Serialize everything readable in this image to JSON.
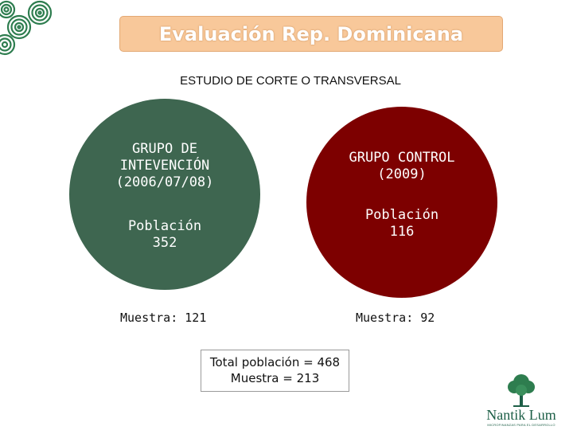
{
  "title": "Evaluación Rep. Dominicana",
  "subtitle": "ESTUDIO DE CORTE O TRANSVERSAL",
  "groups": {
    "intervention": {
      "name": "GRUPO DE\nINTEVENCIÓN\n(2006/07/08)",
      "population": "Población\n352",
      "sample": "Muestra: 121",
      "color": "#3e6650"
    },
    "control": {
      "name": "GRUPO CONTROL\n(2009)",
      "population": "Población\n116",
      "sample": "Muestra: 92",
      "color": "#7d0000"
    }
  },
  "totals": {
    "population": "Total población = 468",
    "sample": "Muestra = 213"
  },
  "brand": {
    "name": "Nantik Lum",
    "tagline": "MICROFINANZAS PARA EL DESARROLLO"
  },
  "colors": {
    "title_box": "#f8c89a",
    "brand": "#1d5f47"
  }
}
